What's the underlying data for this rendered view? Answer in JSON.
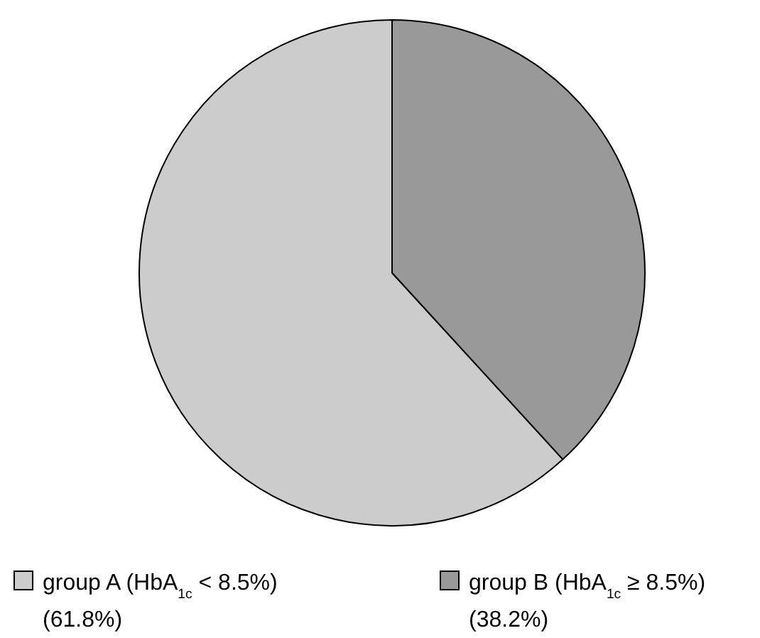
{
  "chart_data": {
    "type": "pie",
    "categories": [
      "group A (HbA$_{1c}$ < 8.5%)",
      "group B (HbA$_{1c}$ ≥ 8.5%)"
    ],
    "values": [
      61.8,
      38.2
    ],
    "colors": [
      "#cccccc",
      "#999999"
    ],
    "value_labels": [
      "(61.8%)",
      "(38.2%)"
    ],
    "legend": "bottom"
  }
}
